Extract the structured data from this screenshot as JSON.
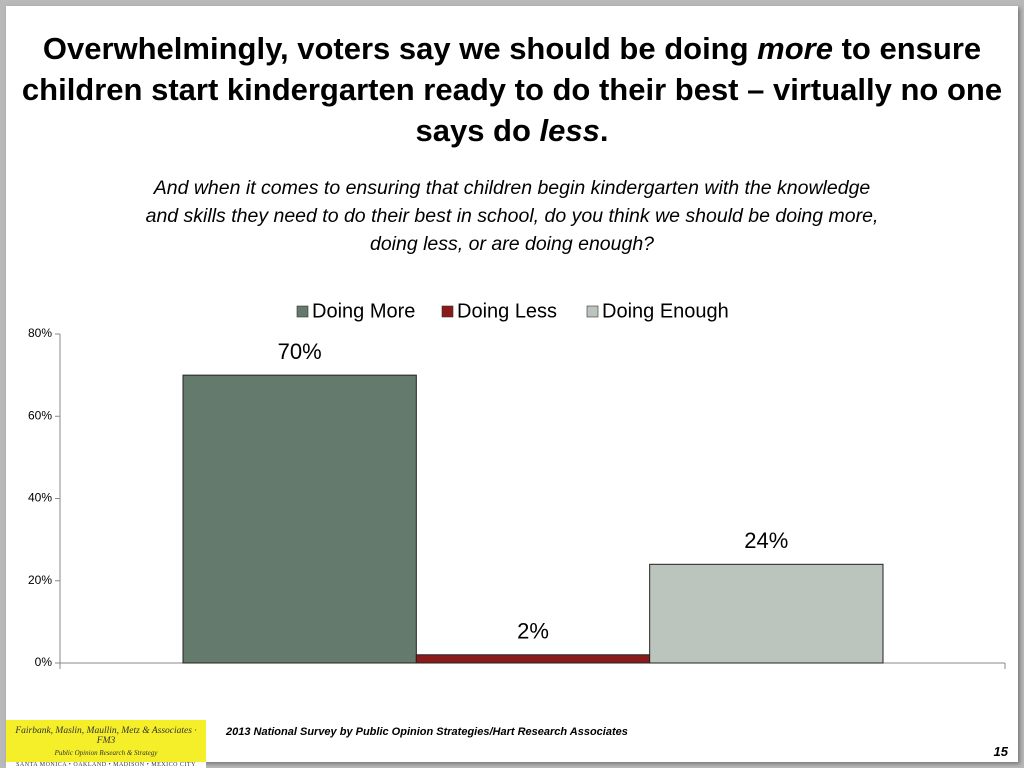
{
  "chart_data": {
    "type": "bar",
    "title_parts": [
      "Overwhelmingly, voters say we should be doing ",
      "more",
      " to ensure children start kindergarten ready to do their best – virtually no one says do ",
      "less",
      "."
    ],
    "subtitle": "And when it comes to ensuring that children begin kindergarten with the knowledge and skills they need to do their best in school, do you think we should be doing more, doing less, or are doing enough?",
    "categories": [
      null
    ],
    "series": [
      {
        "name": "Doing More",
        "color": "#647a6c",
        "values": [
          70
        ],
        "value_labels": [
          "70%"
        ]
      },
      {
        "name": "Doing Less",
        "color": "#8b1a1a",
        "values": [
          2
        ],
        "value_labels": [
          "2%"
        ]
      },
      {
        "name": "Doing Enough",
        "color": "#bcc4be",
        "values": [
          24
        ],
        "value_labels": [
          "24%"
        ]
      }
    ],
    "ylim": [
      0,
      80
    ],
    "yticks": [
      {
        "value": 0,
        "label": "0%"
      },
      {
        "value": 20,
        "label": "20%"
      },
      {
        "value": 40,
        "label": "40%"
      },
      {
        "value": 60,
        "label": "60%"
      },
      {
        "value": 80,
        "label": "80%"
      }
    ],
    "legend": "top"
  },
  "footer": {
    "logo_name": "Fairbank, Maslin, Maullin, Metz & Associates · FM3",
    "logo_tagline": "Public Opinion Research & Strategy",
    "logo_cities": "SANTA MONICA • OAKLAND • MADISON • MEXICO CITY",
    "source": "2013 National Survey by Public Opinion Strategies/Hart Research Associates",
    "page_number": "15"
  }
}
